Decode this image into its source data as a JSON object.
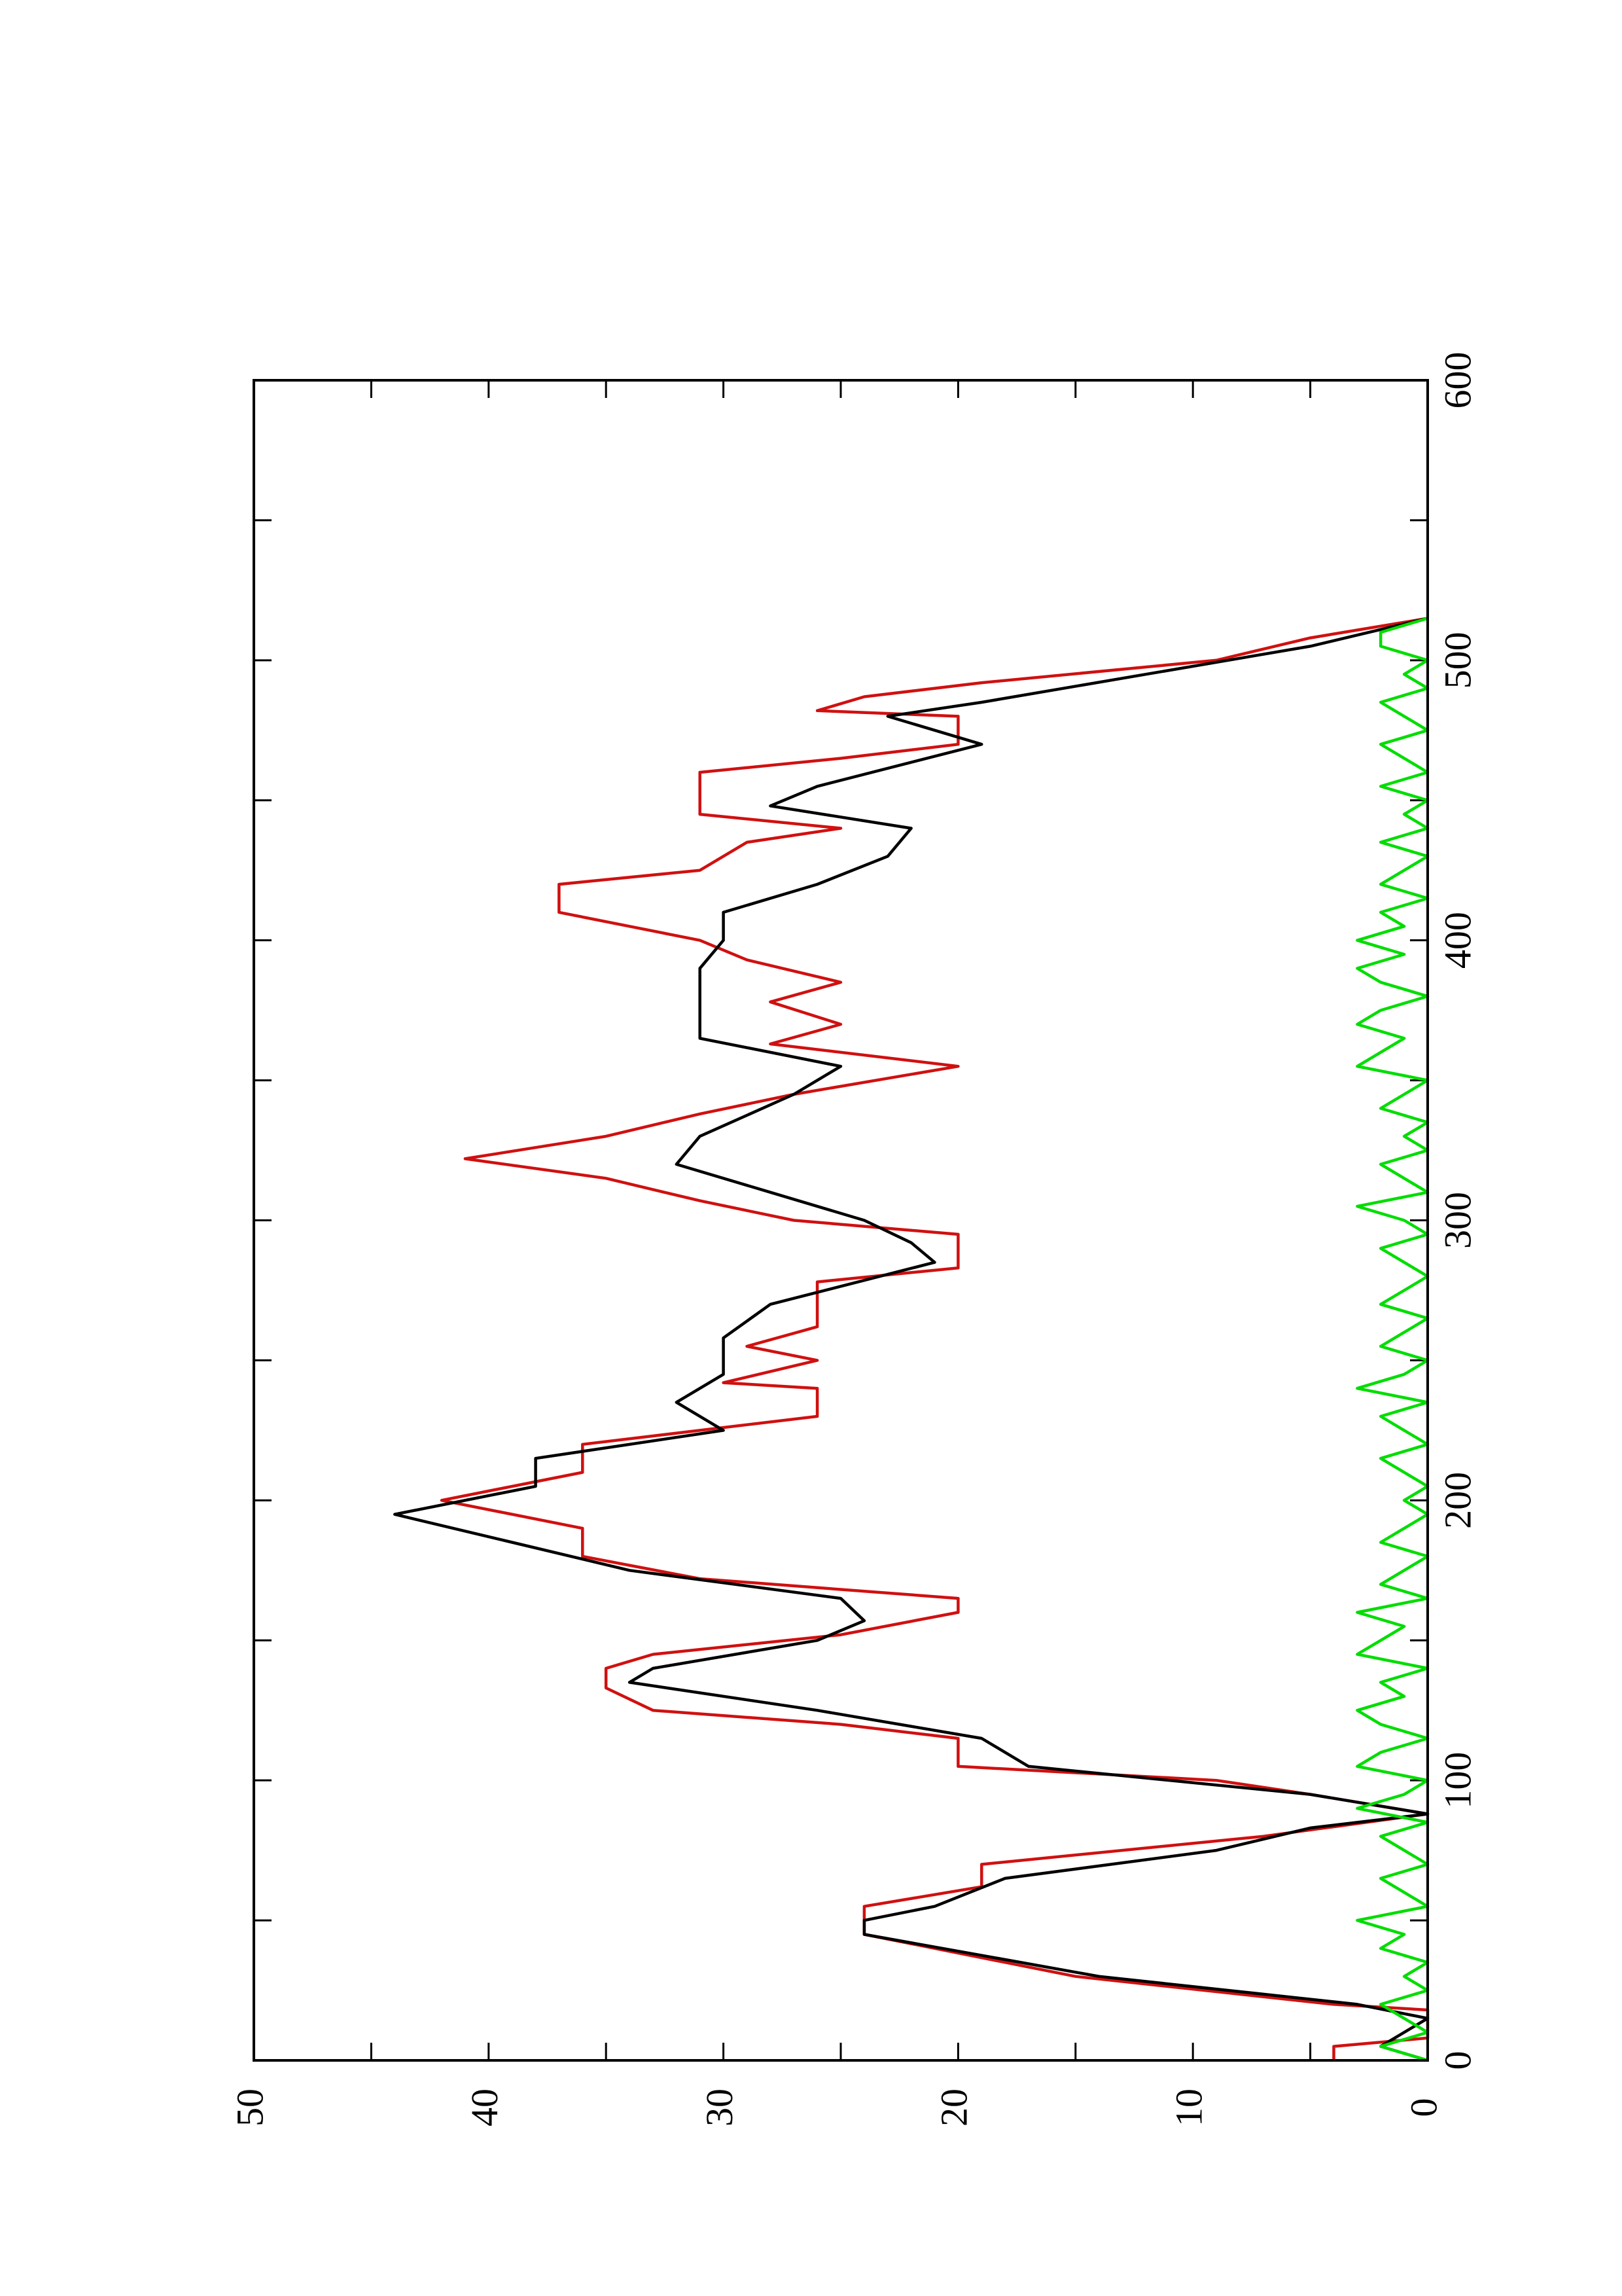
{
  "chart_data": {
    "type": "line",
    "xlim": [
      0,
      600
    ],
    "xticks": [
      0,
      100,
      200,
      300,
      400,
      500,
      600
    ],
    "xminorticks": [
      50,
      150,
      250,
      350,
      450,
      550
    ],
    "ylim": [
      0,
      50
    ],
    "yticks": [
      0,
      10,
      20,
      30,
      40,
      50
    ],
    "yminorticks": [
      5,
      15,
      25,
      35,
      45
    ],
    "rotated": true,
    "series": [
      {
        "color": "#d01010",
        "x": [
          0,
          5,
          8,
          18,
          20,
          30,
          45,
          55,
          62,
          70,
          80,
          88,
          95,
          100,
          105,
          115,
          120,
          125,
          133,
          140,
          145,
          152,
          160,
          165,
          172,
          180,
          190,
          200,
          210,
          220,
          230,
          240,
          242,
          250,
          255,
          262,
          278,
          283,
          295,
          300,
          307,
          315,
          322,
          330,
          338,
          345,
          355,
          363,
          370,
          378,
          385,
          393,
          400,
          405,
          410,
          420,
          425,
          435,
          440,
          445,
          460,
          465,
          470,
          480,
          482,
          487,
          492,
          500,
          508,
          515
        ],
        "values": [
          4,
          4,
          0,
          0,
          4,
          15,
          24,
          24,
          19,
          19,
          7,
          0,
          5,
          9,
          20,
          20,
          25,
          33,
          35,
          35,
          33,
          25,
          20,
          20,
          31,
          36,
          36,
          42,
          36,
          36,
          26,
          26,
          30,
          26,
          29,
          26,
          26,
          20,
          20,
          27,
          31,
          35,
          41,
          35,
          31,
          27,
          20,
          28,
          25,
          28,
          25,
          29,
          31,
          34,
          37,
          37,
          31,
          29,
          25,
          31,
          31,
          25,
          20,
          20,
          26,
          24,
          19,
          9,
          5,
          0
        ]
      },
      {
        "color": "#000000",
        "x": [
          0,
          5,
          10,
          15,
          20,
          30,
          45,
          50,
          55,
          65,
          75,
          83,
          88,
          95,
          105,
          115,
          125,
          135,
          140,
          150,
          157,
          165,
          175,
          185,
          195,
          205,
          215,
          225,
          235,
          245,
          258,
          270,
          285,
          292,
          300,
          310,
          320,
          330,
          345,
          355,
          365,
          375,
          390,
          400,
          410,
          420,
          430,
          440,
          448,
          455,
          470,
          480,
          485,
          495,
          505,
          515
        ],
        "values": [
          0,
          2,
          1,
          0,
          3,
          14,
          24,
          24,
          21,
          18,
          9,
          5,
          0,
          5,
          17,
          19,
          26,
          34,
          33,
          26,
          24,
          25,
          34,
          39,
          44,
          38,
          38,
          30,
          32,
          30,
          30,
          28,
          21,
          22,
          24,
          28,
          32,
          31,
          27,
          25,
          31,
          31,
          31,
          30,
          30,
          26,
          23,
          22,
          28,
          26,
          19,
          23,
          19,
          12,
          5,
          0
        ]
      },
      {
        "color": "#00dd00",
        "x": [
          0,
          5,
          10,
          15,
          20,
          25,
          30,
          35,
          40,
          45,
          50,
          55,
          60,
          65,
          70,
          75,
          80,
          85,
          90,
          95,
          100,
          105,
          110,
          115,
          120,
          125,
          130,
          135,
          140,
          145,
          150,
          155,
          160,
          165,
          170,
          175,
          180,
          185,
          190,
          195,
          200,
          205,
          210,
          215,
          220,
          225,
          230,
          235,
          240,
          245,
          250,
          255,
          260,
          265,
          270,
          275,
          280,
          285,
          290,
          295,
          300,
          305,
          310,
          315,
          320,
          325,
          330,
          335,
          340,
          345,
          350,
          355,
          360,
          365,
          370,
          375,
          380,
          385,
          390,
          395,
          400,
          405,
          410,
          415,
          420,
          425,
          430,
          435,
          440,
          445,
          450,
          455,
          460,
          465,
          470,
          475,
          480,
          485,
          490,
          495,
          500,
          505,
          510,
          515
        ],
        "values": [
          0,
          2,
          0,
          1,
          2,
          0,
          1,
          0,
          2,
          1,
          3,
          0,
          1,
          2,
          0,
          1,
          2,
          0,
          3,
          1,
          0,
          3,
          2,
          0,
          2,
          3,
          1,
          2,
          0,
          3,
          2,
          1,
          3,
          0,
          2,
          1,
          0,
          2,
          1,
          0,
          1,
          0,
          1,
          2,
          0,
          1,
          2,
          0,
          3,
          1,
          0,
          2,
          1,
          0,
          2,
          1,
          0,
          1,
          2,
          0,
          1,
          3,
          0,
          1,
          2,
          0,
          1,
          0,
          2,
          1,
          0,
          3,
          2,
          1,
          3,
          2,
          0,
          2,
          3,
          1,
          3,
          1,
          2,
          0,
          2,
          1,
          0,
          2,
          0,
          1,
          0,
          2,
          0,
          1,
          2,
          0,
          1,
          2,
          0,
          1,
          0,
          2,
          2,
          0
        ]
      }
    ]
  }
}
